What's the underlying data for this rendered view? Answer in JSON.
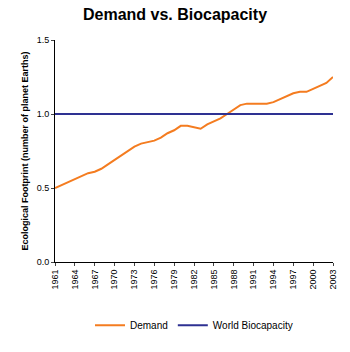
{
  "chart_data": {
    "type": "line",
    "title": "Demand vs. Biocapacity",
    "y_label": "Ecological Footprint (number of planet Earths)",
    "x": [
      1961,
      1962,
      1963,
      1964,
      1965,
      1966,
      1967,
      1968,
      1969,
      1970,
      1971,
      1972,
      1973,
      1974,
      1975,
      1976,
      1977,
      1978,
      1979,
      1980,
      1981,
      1982,
      1983,
      1984,
      1985,
      1986,
      1987,
      1988,
      1989,
      1990,
      1991,
      1992,
      1993,
      1994,
      1995,
      1996,
      1997,
      1998,
      1999,
      2000,
      2001,
      2002,
      2003
    ],
    "series": [
      {
        "name": "Demand",
        "color": "#f47c20",
        "values": [
          0.5,
          0.52,
          0.54,
          0.56,
          0.58,
          0.6,
          0.61,
          0.63,
          0.66,
          0.69,
          0.72,
          0.75,
          0.78,
          0.8,
          0.81,
          0.82,
          0.84,
          0.87,
          0.89,
          0.92,
          0.92,
          0.91,
          0.9,
          0.93,
          0.95,
          0.97,
          1.0,
          1.03,
          1.06,
          1.07,
          1.07,
          1.07,
          1.07,
          1.08,
          1.1,
          1.12,
          1.14,
          1.15,
          1.15,
          1.17,
          1.19,
          1.21,
          1.25
        ]
      },
      {
        "name": "World Biocapacity",
        "color": "#2e3192",
        "values": [
          1,
          1,
          1,
          1,
          1,
          1,
          1,
          1,
          1,
          1,
          1,
          1,
          1,
          1,
          1,
          1,
          1,
          1,
          1,
          1,
          1,
          1,
          1,
          1,
          1,
          1,
          1,
          1,
          1,
          1,
          1,
          1,
          1,
          1,
          1,
          1,
          1,
          1,
          1,
          1,
          1,
          1,
          1
        ]
      }
    ],
    "xlim": [
      1961,
      2003
    ],
    "xticks": [
      1961,
      1964,
      1967,
      1970,
      1973,
      1976,
      1979,
      1982,
      1985,
      1988,
      1991,
      1994,
      1997,
      2000,
      2003
    ],
    "ylim": [
      0,
      1.5
    ],
    "yticks": [
      {
        "value": 0,
        "label": "0.0"
      },
      0.5,
      {
        "value": 1,
        "label": "1.0"
      },
      1.5
    ],
    "grid": false,
    "legend": "bottom"
  }
}
